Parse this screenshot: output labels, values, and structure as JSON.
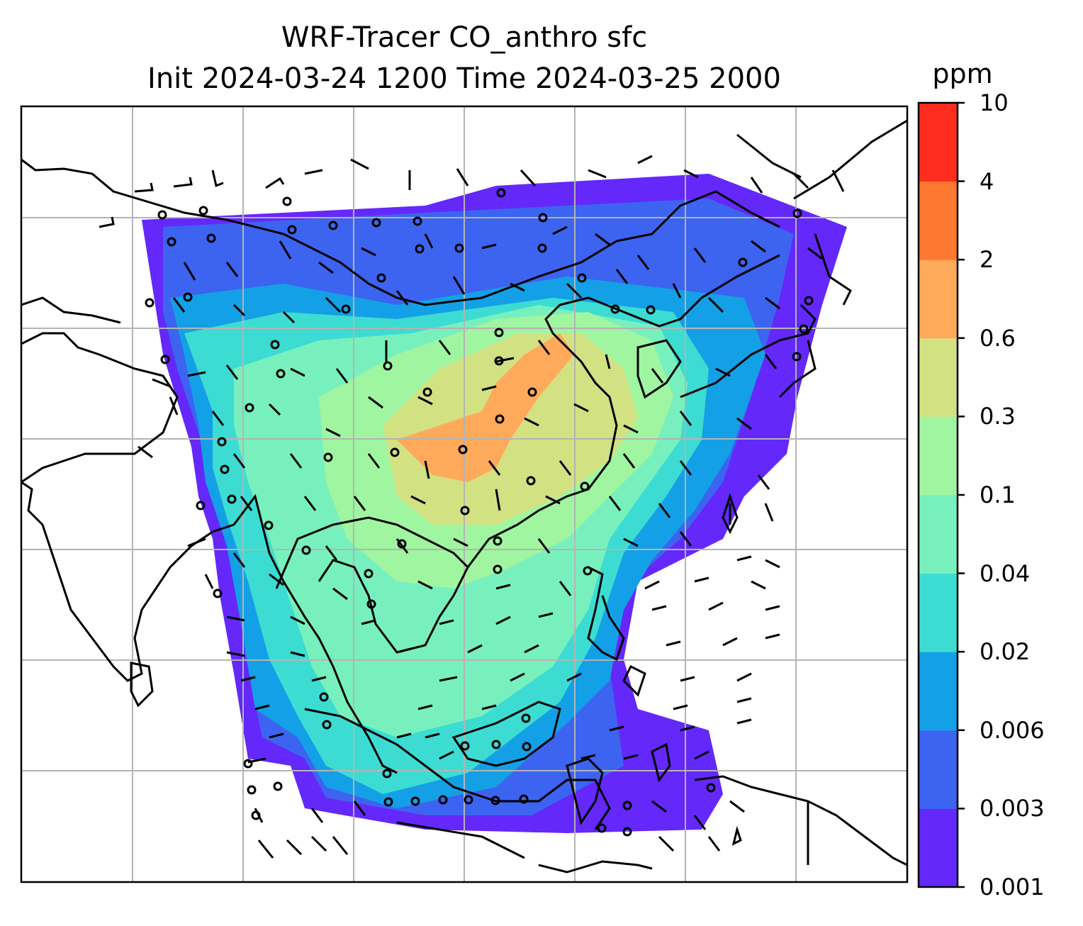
{
  "title": {
    "line1": "WRF-Tracer CO_anthro sfc",
    "line2": "Init 2024-03-24 1200 Time 2024-03-25 2000"
  },
  "colorbar": {
    "unit": "ppm",
    "ticks": [
      "0.001",
      "0.003",
      "0.006",
      "0.02",
      "0.04",
      "0.1",
      "0.3",
      "0.6",
      "2",
      "4",
      "10"
    ],
    "colors": [
      "#6428fa",
      "#3c64f0",
      "#14a0e6",
      "#3cdcd2",
      "#78f0be",
      "#a0f5a0",
      "#d2e182",
      "#ffaa5a",
      "#ff7832",
      "#ff2d1e"
    ]
  },
  "map": {
    "variable": "CO_anthro",
    "level": "sfc",
    "overlays": [
      "coastlines",
      "country-borders",
      "lat-lon-gridlines",
      "wind-barbs"
    ],
    "gridline_color": "#b4b4b4"
  }
}
